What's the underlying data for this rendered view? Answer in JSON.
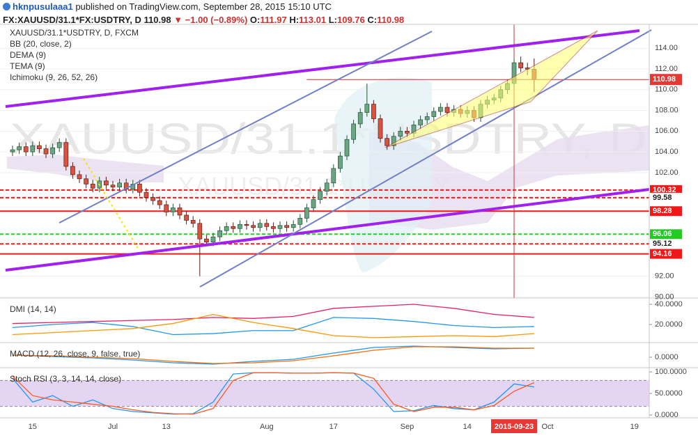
{
  "header": {
    "author": "hknpusulaaa1",
    "published": "published on TradingView.com, September 28, 2015 15:10 UTC",
    "symbol": "FX:XAUUSD/31.1*FX:USDTRY, D",
    "change": "▼ −1.00 (−0.89%)",
    "ohlc_labels": [
      "O:",
      "H:",
      "L:",
      "C:"
    ]
  },
  "chart_data": [
    {
      "type": "candlestick",
      "title": "XAUUSD/31.1*USDTRY, D, FXCM",
      "watermark": "XAUUSD/31.1*USDTRY, D",
      "watermark_sub": "XAUUSD/31.1*USDTRY",
      "indicators": [
        "BB (20, close, 2)",
        "DEMA (9)",
        "TEMA (9)",
        "Ichimoku (9, 26, 52, 26)"
      ],
      "categories": [
        null,
        null,
        null,
        "15",
        null,
        null,
        null,
        null,
        null,
        null,
        null,
        null,
        null,
        null,
        null,
        "Jul",
        null,
        null,
        null,
        null,
        null,
        null,
        null,
        "13",
        null,
        null,
        null,
        null,
        null,
        null,
        null,
        null,
        null,
        null,
        null,
        null,
        null,
        null,
        "Aug",
        null,
        null,
        null,
        null,
        null,
        null,
        null,
        null,
        null,
        "17",
        null,
        null,
        null,
        null,
        null,
        null,
        null,
        null,
        null,
        null,
        "Sep",
        null,
        null,
        null,
        null,
        null,
        null,
        null,
        null,
        "14",
        null,
        null,
        null,
        null,
        null,
        null,
        "2015-09-23",
        null,
        null,
        null,
        null,
        "Oct",
        null,
        null,
        null,
        null,
        null,
        null,
        null,
        null,
        null,
        null,
        null,
        null,
        "19",
        null
      ],
      "open": [
        104.0,
        104.2,
        104.5,
        104.0,
        104.6,
        104.3,
        103.8,
        104.4,
        104.9,
        102.6,
        101.8,
        101.4,
        100.9,
        100.5,
        101.2,
        100.8,
        100.6,
        101.0,
        100.4,
        100.9,
        100.1,
        99.6,
        99.3,
        98.9,
        98.2,
        98.6,
        97.9,
        97.4,
        97.1,
        95.6,
        95.3,
        95.8,
        96.4,
        96.8,
        96.6,
        97.0,
        96.9,
        96.7,
        97.1,
        96.8,
        96.6,
        96.9,
        96.7,
        97.0,
        97.6,
        98.6,
        99.4,
        100.2,
        101.0,
        102.4,
        103.6,
        105.2,
        106.7,
        107.8,
        108.6,
        107.2,
        105.3,
        104.6,
        105.5,
        106.0,
        105.8,
        106.6,
        107.1,
        107.4,
        107.9,
        108.3,
        107.8,
        108.1,
        107.7,
        108.0,
        107.3,
        108.6,
        109.0,
        109.2,
        110.0,
        110.6,
        112.6,
        112.1,
        111.97,
        null,
        null,
        null,
        null,
        null,
        null,
        null,
        null,
        null,
        null,
        null,
        null,
        null,
        null,
        null,
        null
      ],
      "high": [
        104.6,
        104.9,
        104.9,
        105.0,
        105.0,
        104.7,
        104.8,
        105.3,
        105.3,
        103.0,
        102.2,
        101.8,
        101.3,
        101.6,
        101.6,
        101.2,
        101.4,
        101.4,
        101.3,
        101.3,
        100.5,
        100.0,
        99.7,
        99.3,
        99.0,
        99.0,
        98.3,
        97.8,
        97.5,
        96.0,
        96.2,
        96.8,
        97.2,
        97.2,
        97.4,
        97.4,
        97.3,
        97.5,
        97.5,
        97.2,
        97.3,
        97.3,
        97.4,
        98.0,
        99.0,
        99.8,
        100.6,
        101.4,
        102.8,
        104.0,
        105.6,
        107.1,
        108.2,
        110.6,
        109.0,
        107.6,
        105.7,
        105.9,
        106.4,
        106.4,
        107.0,
        107.5,
        107.8,
        108.3,
        108.7,
        108.7,
        108.5,
        108.5,
        108.4,
        108.4,
        109.0,
        109.4,
        109.6,
        110.4,
        111.0,
        113.0,
        113.2,
        112.6,
        113.01,
        null,
        null,
        null,
        null,
        null,
        null,
        null,
        null,
        null,
        null,
        null,
        null,
        null,
        null,
        null,
        null
      ],
      "low": [
        103.6,
        103.8,
        103.6,
        103.6,
        103.9,
        103.4,
        103.4,
        104.0,
        102.2,
        101.4,
        101.0,
        100.5,
        100.1,
        100.1,
        100.4,
        100.2,
        100.2,
        100.0,
        100.0,
        99.7,
        99.2,
        98.9,
        98.5,
        97.8,
        97.8,
        97.5,
        97.0,
        96.7,
        92.0,
        94.9,
        94.9,
        95.4,
        96.0,
        96.2,
        96.2,
        96.5,
        96.3,
        96.3,
        96.4,
        96.2,
        96.2,
        96.3,
        96.3,
        96.6,
        97.2,
        98.2,
        99.0,
        99.8,
        100.6,
        102.0,
        103.2,
        104.8,
        106.3,
        107.4,
        106.8,
        104.9,
        104.2,
        104.2,
        105.1,
        105.4,
        105.4,
        106.2,
        106.7,
        107.0,
        107.5,
        107.4,
        107.4,
        107.3,
        107.3,
        106.9,
        106.9,
        108.2,
        108.6,
        108.8,
        109.6,
        110.2,
        111.7,
        111.4,
        109.76,
        null,
        null,
        null,
        null,
        null,
        null,
        null,
        null,
        null,
        null,
        null,
        null,
        null,
        null,
        null,
        null
      ],
      "close": [
        104.2,
        104.5,
        104.0,
        104.6,
        104.3,
        103.8,
        104.4,
        104.9,
        102.6,
        101.8,
        101.4,
        100.9,
        100.5,
        101.2,
        100.8,
        100.6,
        101.0,
        100.4,
        100.9,
        100.1,
        99.6,
        99.3,
        98.9,
        98.2,
        98.6,
        97.9,
        97.4,
        97.1,
        95.6,
        95.3,
        95.8,
        96.4,
        96.8,
        96.6,
        97.0,
        96.9,
        96.7,
        97.1,
        96.8,
        96.6,
        96.9,
        96.7,
        97.0,
        97.6,
        98.6,
        99.4,
        100.2,
        101.0,
        102.4,
        103.6,
        105.2,
        106.7,
        107.8,
        108.6,
        107.2,
        105.3,
        104.6,
        105.5,
        106.0,
        105.8,
        106.6,
        107.1,
        107.4,
        107.9,
        108.3,
        107.8,
        108.1,
        107.7,
        108.0,
        107.3,
        108.6,
        109.0,
        109.2,
        110.0,
        110.6,
        112.6,
        112.1,
        111.98,
        110.98,
        null,
        null,
        null,
        null,
        null,
        null,
        null,
        null,
        null,
        null,
        null,
        null,
        null,
        null,
        null,
        null
      ],
      "up_color": "#6ba583",
      "down_color": "#d75442",
      "ylim": [
        89.9,
        116.3
      ],
      "yticks": [
        {
          "value": 90,
          "label": "90.00"
        },
        {
          "value": 92,
          "label": "92.00"
        },
        {
          "value": 102,
          "label": "102.00"
        },
        {
          "value": 104,
          "label": "104.00"
        },
        {
          "value": 106,
          "label": "106.00"
        },
        {
          "value": 108,
          "label": "108.00"
        },
        {
          "value": 110,
          "label": "110.00"
        },
        {
          "value": 112,
          "label": "112.00"
        },
        {
          "value": 114,
          "label": "114.00"
        }
      ],
      "grid": true,
      "levels": [
        {
          "value": 100.32,
          "color": "#f01818",
          "dash": true,
          "box": true
        },
        {
          "value": 99.58,
          "color": "#f01818",
          "dash": true,
          "box": false
        },
        {
          "value": 98.28,
          "color": "#f01818",
          "dash": false,
          "box": true
        },
        {
          "value": 96.06,
          "color": "#22cc22",
          "dash": true,
          "box": true
        },
        {
          "value": 95.12,
          "color": "#f01818",
          "dash": true,
          "box": false
        },
        {
          "value": 94.16,
          "color": "#f01818",
          "dash": false,
          "box": true
        }
      ],
      "crosshair_index": 75
    },
    {
      "type": "line",
      "title": "DMI (14, 14)",
      "x": [
        0,
        6,
        12,
        18,
        24,
        30,
        36,
        42,
        48,
        54,
        60,
        66,
        72,
        78
      ],
      "series": [
        {
          "color": "#e91e63",
          "values": [
            21,
            22,
            23,
            24,
            25,
            27,
            26,
            28,
            36,
            38,
            40,
            36,
            30,
            27
          ]
        },
        {
          "color": "#2196f3",
          "values": [
            17,
            20,
            22,
            18,
            10,
            11,
            14,
            14,
            27,
            26,
            23,
            19,
            17,
            18
          ]
        },
        {
          "color": "#ff9800",
          "values": [
            10,
            12,
            14,
            16,
            21,
            30,
            22,
            16,
            9,
            7,
            8,
            9,
            8,
            11
          ]
        }
      ],
      "ylim": [
        2.1,
        46.2
      ],
      "yticks": [
        {
          "value": 20,
          "label": "20.0000"
        },
        {
          "value": 40,
          "label": "40.0000"
        }
      ]
    },
    {
      "type": "line",
      "title": "MACD (12, 26, close, 9, false, true)",
      "x": [
        0,
        6,
        12,
        18,
        24,
        30,
        36,
        42,
        48,
        54,
        60,
        66,
        72,
        78
      ],
      "series": [
        {
          "color": "#2196f3",
          "values": [
            0.3,
            0.1,
            -0.1,
            -0.4,
            -0.8,
            -1.0,
            -0.6,
            -0.3,
            0.6,
            1.4,
            1.6,
            1.4,
            1.2,
            1.3
          ]
        },
        {
          "color": "#ff6d00",
          "values": [
            0.3,
            0.2,
            0.0,
            -0.2,
            -0.6,
            -0.9,
            -0.8,
            -0.5,
            0.2,
            1.0,
            1.5,
            1.5,
            1.3,
            1.3
          ]
        }
      ],
      "ylim": [
        -1.5,
        2.1
      ],
      "yticks": [
        {
          "value": 0,
          "label": "0.0000"
        }
      ]
    },
    {
      "type": "line",
      "title": "Stoch RSI (3, 3, 14, 14, close)",
      "x": [
        0,
        3,
        6,
        9,
        12,
        15,
        18,
        21,
        24,
        27,
        30,
        33,
        36,
        39,
        42,
        45,
        48,
        51,
        54,
        57,
        60,
        63,
        66,
        69,
        72,
        75,
        78
      ],
      "series": [
        {
          "color": "#2196f3",
          "values": [
            85,
            30,
            45,
            20,
            35,
            15,
            8,
            5,
            2,
            3,
            30,
            95,
            98,
            98,
            97,
            97,
            98,
            97,
            60,
            8,
            10,
            22,
            15,
            12,
            30,
            72,
            65
          ]
        },
        {
          "color": "#ff5722",
          "values": [
            90,
            45,
            35,
            30,
            25,
            20,
            12,
            6,
            3,
            2,
            15,
            80,
            98,
            98,
            97,
            97,
            98,
            97,
            85,
            25,
            8,
            18,
            18,
            12,
            22,
            55,
            75
          ]
        }
      ],
      "ylim": [
        -6.5,
        109.7
      ],
      "yticks": [
        {
          "value": 0,
          "label": "0.0000"
        },
        {
          "value": 50,
          "label": "50.0000"
        },
        {
          "value": 100,
          "label": "100.0000"
        }
      ],
      "band": [
        20,
        80
      ],
      "band_color": "#e4d6f3"
    }
  ]
}
